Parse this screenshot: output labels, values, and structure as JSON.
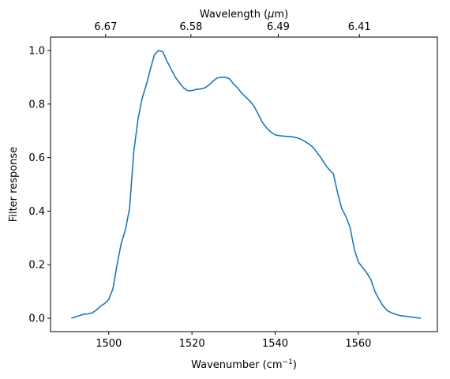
{
  "chart_data": {
    "type": "line",
    "xlabel": "Wavenumber (cm",
    "xlabel_sup": "−1",
    "xlabel_end": ")",
    "ylabel": "Filter response",
    "top_xlabel": "Wavelength (",
    "top_xlabel_mu": "μ",
    "top_xlabel_end": "m)",
    "xlim": [
      1486,
      1579
    ],
    "ylim": [
      -0.05,
      1.05
    ],
    "x_ticks": [
      1500,
      1520,
      1540,
      1560
    ],
    "x_tick_labels": [
      "1500",
      "1520",
      "1540",
      "1560"
    ],
    "y_ticks": [
      0.0,
      0.2,
      0.4,
      0.6,
      0.8,
      1.0
    ],
    "y_tick_labels": [
      "0.0",
      "0.2",
      "0.4",
      "0.6",
      "0.8",
      "1.0"
    ],
    "top_ticks_wavenumber": [
      1499.25,
      1519.75,
      1540.75,
      1560.25
    ],
    "top_tick_labels": [
      "6.67",
      "6.58",
      "6.49",
      "6.41"
    ],
    "grid": false,
    "line_color": "#1f77b4",
    "series": [
      {
        "x": [
          1491,
          1492,
          1493,
          1494,
          1495,
          1496,
          1497,
          1498,
          1499,
          1500,
          1501,
          1502,
          1503,
          1504,
          1505,
          1506,
          1507,
          1508,
          1509,
          1510,
          1511,
          1512,
          1513,
          1514,
          1515,
          1516,
          1517,
          1518,
          1519,
          1520,
          1521,
          1522,
          1523,
          1524,
          1525,
          1526,
          1527,
          1528,
          1529,
          1530,
          1531,
          1532,
          1533,
          1534,
          1535,
          1536,
          1537,
          1538,
          1539,
          1540,
          1541,
          1542,
          1543,
          1544,
          1545,
          1546,
          1547,
          1548,
          1549,
          1550,
          1551,
          1552,
          1553,
          1554,
          1555,
          1556,
          1557,
          1558,
          1559,
          1560,
          1561,
          1562,
          1563,
          1564,
          1565,
          1566,
          1567,
          1568,
          1569,
          1570,
          1571,
          1572,
          1573,
          1574,
          1575
        ],
        "y": [
          0.0,
          0.005,
          0.01,
          0.015,
          0.016,
          0.02,
          0.03,
          0.045,
          0.055,
          0.07,
          0.11,
          0.2,
          0.28,
          0.33,
          0.41,
          0.62,
          0.74,
          0.82,
          0.87,
          0.93,
          0.985,
          1.0,
          0.995,
          0.96,
          0.93,
          0.9,
          0.88,
          0.86,
          0.85,
          0.85,
          0.855,
          0.856,
          0.86,
          0.87,
          0.885,
          0.897,
          0.9,
          0.9,
          0.895,
          0.875,
          0.86,
          0.84,
          0.825,
          0.81,
          0.79,
          0.76,
          0.73,
          0.71,
          0.695,
          0.685,
          0.682,
          0.68,
          0.679,
          0.678,
          0.675,
          0.67,
          0.662,
          0.652,
          0.64,
          0.62,
          0.6,
          0.575,
          0.555,
          0.54,
          0.47,
          0.41,
          0.38,
          0.34,
          0.26,
          0.21,
          0.19,
          0.17,
          0.145,
          0.1,
          0.07,
          0.045,
          0.028,
          0.02,
          0.015,
          0.01,
          0.008,
          0.006,
          0.004,
          0.002,
          0.0
        ]
      }
    ]
  }
}
